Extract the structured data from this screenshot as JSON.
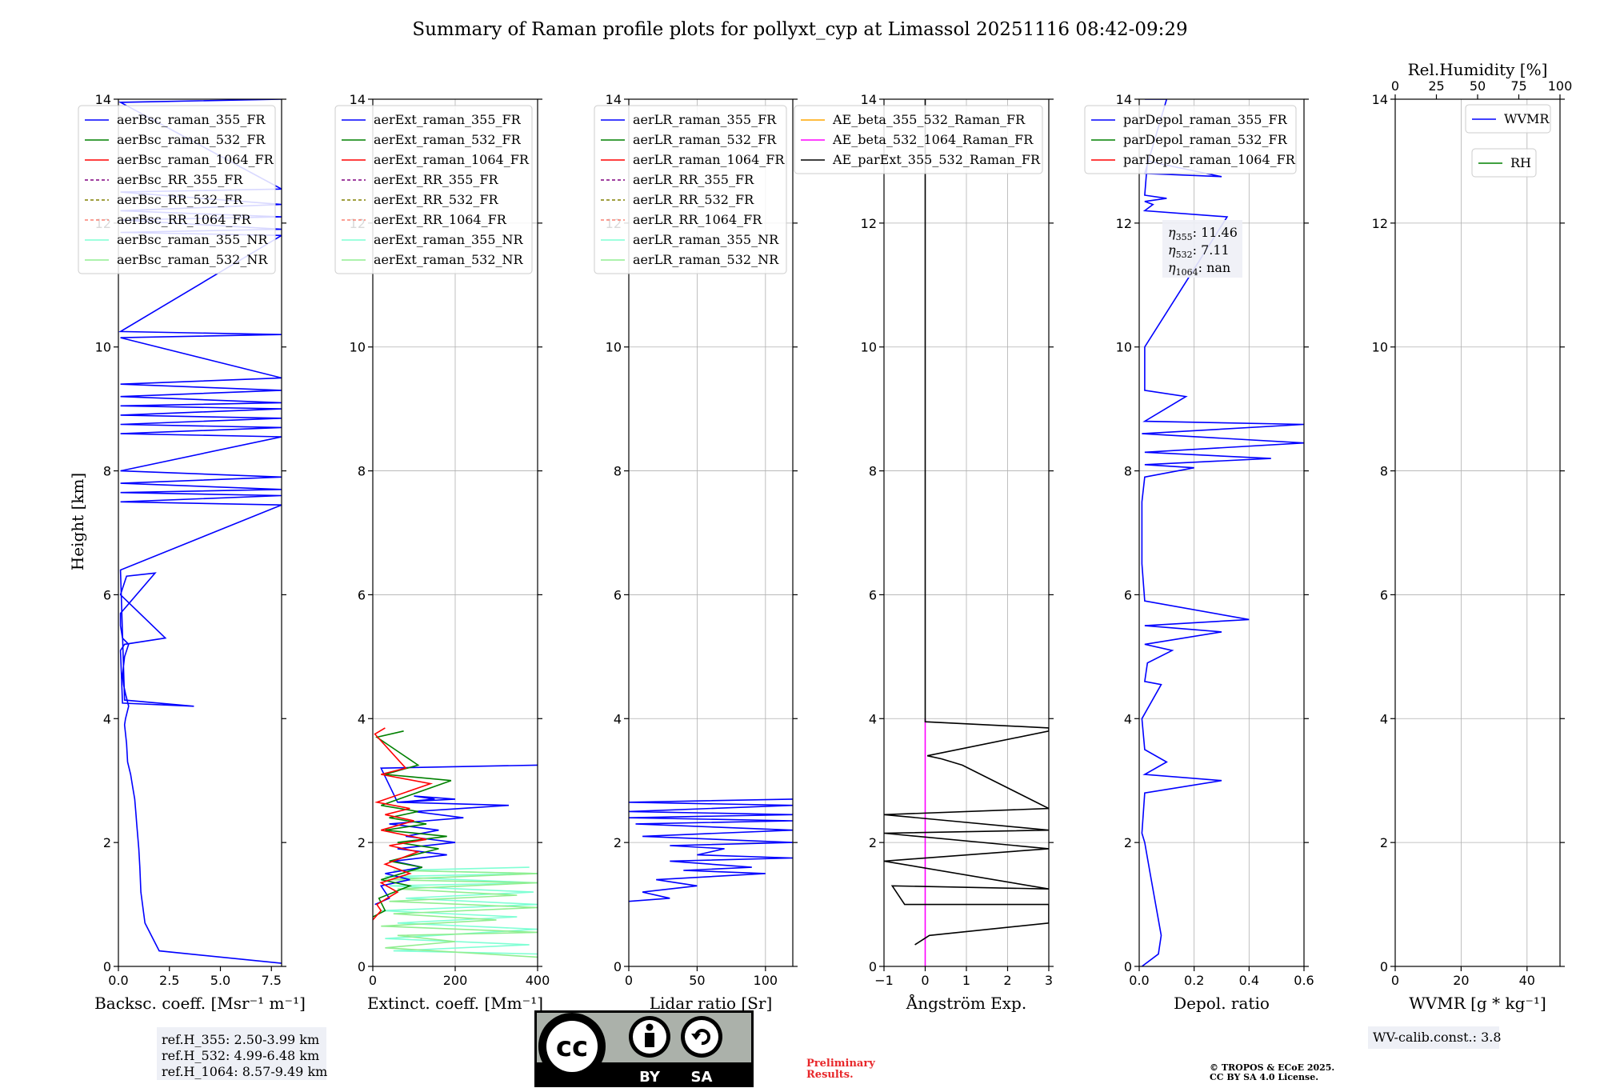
{
  "title": "Summary of Raman profile plots for pollyxt_cyp at Limassol 20251116 08:42-09:29",
  "ylabel": "Height [km]",
  "y_ticks": [
    0,
    2,
    4,
    6,
    8,
    10,
    12,
    14
  ],
  "ylim": [
    0,
    14
  ],
  "colors": {
    "blue": "#0000ff",
    "green": "#008000",
    "red": "#ff0000",
    "purple": "#800080",
    "olive": "#808000",
    "salmon": "#fa8072",
    "aquamarine": "#7fffd4",
    "lightgreen": "#90ee90",
    "orange": "#ffa500",
    "magenta": "#ff00ff",
    "black": "#000000"
  },
  "notes": {
    "eta355": "11.46",
    "eta532": "7.11",
    "eta1064": "nan",
    "ref_h_355": "ref.H_355: 2.50-3.99 km",
    "ref_h_532": "ref.H_532: 4.99-6.48 km",
    "ref_h_1064": "ref.H_1064: 8.57-9.49 km",
    "wv_calib": "WV-calib.const.: 3.8",
    "prelim_line1": "Preliminary",
    "prelim_line2": "Results.",
    "copyright_line1": "© TROPOS & ECoE 2025.",
    "copyright_line2": "CC BY SA 4.0 License.",
    "license_by": "BY",
    "license_sa": "SA",
    "license_cc": "cc"
  },
  "chart_data": [
    {
      "type": "line",
      "id": "bsc",
      "xlabel": "Backsc. coeff. [Msr⁻¹ m⁻¹]",
      "xlim": [
        0,
        8
      ],
      "x_ticks": [
        0,
        2.5,
        5,
        7.5
      ],
      "x_tick_labels": [
        "0.0",
        "2.5",
        "5.0",
        "7.5"
      ],
      "grid": false,
      "legend": [
        {
          "label": "aerBsc_raman_355_FR",
          "color": "blue",
          "dash": false
        },
        {
          "label": "aerBsc_raman_532_FR",
          "color": "green",
          "dash": false
        },
        {
          "label": "aerBsc_raman_1064_FR",
          "color": "red",
          "dash": false
        },
        {
          "label": "aerBsc_RR_355_FR",
          "color": "purple",
          "dash": true
        },
        {
          "label": "aerBsc_RR_532_FR",
          "color": "olive",
          "dash": true
        },
        {
          "label": "aerBsc_RR_1064_FR",
          "color": "salmon",
          "dash": true
        },
        {
          "label": "aerBsc_raman_355_NR",
          "color": "aquamarine",
          "dash": false
        },
        {
          "label": "aerBsc_raman_532_NR",
          "color": "lightgreen",
          "dash": false
        }
      ],
      "series": [
        {
          "name": "aerBsc_raman_355_FR",
          "color": "blue",
          "x": [
            8,
            2,
            1.3,
            1.1,
            1.05,
            1.0,
            0.95,
            0.9,
            0.85,
            0.8,
            0.7,
            0.6,
            0.45,
            0.4,
            0.3,
            0.35,
            0.5,
            0.35,
            0.25,
            0.2,
            0.3,
            0.5,
            0.2,
            0.1,
            0.1,
            1.8,
            0.4,
            0.2,
            0.1,
            2.3,
            0.3,
            0.1,
            0.2,
            3.7,
            0.3,
            0.1,
            8,
            0.1,
            8,
            0.1,
            8,
            0.1,
            8,
            0.1,
            8,
            0.1,
            8,
            0.1,
            8,
            0.1,
            8,
            0.1,
            8,
            0.1,
            8,
            0.1,
            8,
            0.1,
            8,
            0.1,
            8,
            0.1,
            8,
            0.1,
            8,
            0.1,
            8,
            0.1,
            8,
            0.1,
            8
          ],
          "y": [
            0.05,
            0.25,
            0.7,
            1.2,
            1.6,
            1.9,
            2.1,
            2.3,
            2.5,
            2.7,
            2.9,
            3.1,
            3.3,
            3.6,
            3.9,
            4.0,
            4.2,
            4.4,
            4.55,
            4.7,
            5.0,
            5.2,
            5.3,
            5.5,
            5.7,
            6.35,
            6.3,
            6.1,
            6.0,
            5.3,
            5.2,
            5.1,
            4.25,
            4.2,
            4.3,
            6.4,
            7.45,
            7.5,
            7.6,
            7.65,
            7.7,
            7.8,
            7.9,
            8.0,
            8.55,
            8.6,
            8.7,
            8.75,
            8.85,
            8.9,
            9.0,
            9.05,
            9.1,
            9.2,
            9.3,
            9.4,
            9.5,
            10.15,
            10.2,
            10.25,
            11.8,
            11.85,
            11.9,
            12.05,
            12.1,
            12.2,
            12.3,
            12.5,
            12.55,
            13.95,
            14.0
          ]
        }
      ]
    },
    {
      "type": "line",
      "id": "ext",
      "xlabel": "Extinct. coeff. [Mm⁻¹]",
      "xlim": [
        0,
        400
      ],
      "x_ticks": [
        0,
        200,
        400
      ],
      "x_tick_labels": [
        "0",
        "200",
        "400"
      ],
      "grid": true,
      "legend": [
        {
          "label": "aerExt_raman_355_FR",
          "color": "blue",
          "dash": false
        },
        {
          "label": "aerExt_raman_532_FR",
          "color": "green",
          "dash": false
        },
        {
          "label": "aerExt_raman_1064_FR",
          "color": "red",
          "dash": false
        },
        {
          "label": "aerExt_RR_355_FR",
          "color": "purple",
          "dash": true
        },
        {
          "label": "aerExt_RR_532_FR",
          "color": "olive",
          "dash": true
        },
        {
          "label": "aerExt_RR_1064_FR",
          "color": "salmon",
          "dash": true
        },
        {
          "label": "aerExt_raman_355_NR",
          "color": "aquamarine",
          "dash": false
        },
        {
          "label": "aerExt_raman_532_NR",
          "color": "lightgreen",
          "dash": false
        }
      ],
      "series": [
        {
          "name": "aerExt_raman_355_NR",
          "color": "aquamarine",
          "x": [
            400,
            50,
            380,
            30,
            400,
            60,
            350,
            20,
            400,
            80,
            390,
            40,
            400,
            30,
            400,
            60,
            380
          ],
          "y": [
            0.2,
            0.25,
            0.35,
            0.45,
            0.6,
            0.7,
            0.8,
            0.9,
            1.0,
            1.1,
            1.2,
            1.3,
            1.35,
            1.45,
            1.5,
            1.55,
            1.6
          ]
        },
        {
          "name": "aerExt_raman_532_NR",
          "color": "lightgreen",
          "x": [
            400,
            30,
            200,
            60,
            400,
            20,
            300,
            50,
            400,
            40,
            350,
            60,
            400,
            30,
            400,
            50
          ],
          "y": [
            0.15,
            0.3,
            0.4,
            0.5,
            0.55,
            0.65,
            0.75,
            0.85,
            0.95,
            1.05,
            1.15,
            1.25,
            1.35,
            1.4,
            1.5,
            1.55
          ]
        },
        {
          "name": "aerExt_raman_355_FR",
          "color": "blue",
          "x": [
            5,
            40,
            20,
            90,
            30,
            120,
            50,
            180,
            60,
            200,
            80,
            160,
            40,
            220,
            100,
            330,
            60,
            200,
            100,
            150,
            60,
            20,
            400
          ],
          "y": [
            1.0,
            1.1,
            1.3,
            1.4,
            1.5,
            1.6,
            1.7,
            1.8,
            1.9,
            2.0,
            2.1,
            2.2,
            2.3,
            2.4,
            2.5,
            2.6,
            2.65,
            2.7,
            2.75,
            2.7,
            2.65,
            3.2,
            3.25
          ]
        },
        {
          "name": "aerExt_raman_532_FR",
          "color": "green",
          "x": [
            0,
            30,
            15,
            90,
            20,
            120,
            40,
            160,
            60,
            180,
            30,
            130,
            40,
            110,
            20,
            190,
            30,
            110,
            10,
            75
          ],
          "y": [
            0.8,
            0.9,
            1.1,
            1.3,
            1.4,
            1.6,
            1.7,
            1.9,
            2.0,
            2.1,
            2.2,
            2.3,
            2.4,
            2.5,
            2.6,
            3.0,
            3.1,
            3.25,
            3.7,
            3.8
          ]
        },
        {
          "name": "aerExt_raman_1064_FR",
          "color": "red",
          "x": [
            0,
            20,
            10,
            60,
            20,
            90,
            30,
            110,
            40,
            130,
            20,
            100,
            30,
            90,
            10,
            140,
            20,
            80,
            5,
            30
          ],
          "y": [
            0.75,
            0.9,
            1.0,
            1.2,
            1.35,
            1.5,
            1.65,
            1.85,
            1.95,
            2.05,
            2.2,
            2.35,
            2.45,
            2.55,
            2.65,
            2.95,
            3.1,
            3.2,
            3.75,
            3.85
          ]
        }
      ]
    },
    {
      "type": "line",
      "id": "lr",
      "xlabel": "Lidar ratio [Sr]",
      "xlim": [
        0,
        120
      ],
      "x_ticks": [
        0,
        50,
        100
      ],
      "x_tick_labels": [
        "0",
        "50",
        "100"
      ],
      "grid": true,
      "legend": [
        {
          "label": "aerLR_raman_355_FR",
          "color": "blue",
          "dash": false
        },
        {
          "label": "aerLR_raman_532_FR",
          "color": "green",
          "dash": false
        },
        {
          "label": "aerLR_raman_1064_FR",
          "color": "red",
          "dash": false
        },
        {
          "label": "aerLR_RR_355_FR",
          "color": "purple",
          "dash": true
        },
        {
          "label": "aerLR_RR_532_FR",
          "color": "olive",
          "dash": true
        },
        {
          "label": "aerLR_RR_1064_FR",
          "color": "salmon",
          "dash": true
        },
        {
          "label": "aerLR_raman_355_NR",
          "color": "aquamarine",
          "dash": false
        },
        {
          "label": "aerLR_raman_532_NR",
          "color": "lightgreen",
          "dash": false
        }
      ],
      "series": [
        {
          "name": "aerLR_raman_355_FR",
          "color": "blue",
          "x": [
            0,
            30,
            10,
            50,
            20,
            100,
            40,
            90,
            30,
            120,
            50,
            70,
            30,
            120,
            10,
            120,
            5,
            120,
            0,
            120,
            0,
            120,
            0,
            120
          ],
          "y": [
            1.05,
            1.1,
            1.2,
            1.3,
            1.4,
            1.5,
            1.55,
            1.6,
            1.7,
            1.75,
            1.8,
            1.9,
            1.95,
            2.0,
            2.1,
            2.2,
            2.3,
            2.35,
            2.4,
            2.45,
            2.5,
            2.6,
            2.65,
            2.7
          ]
        }
      ]
    },
    {
      "type": "line",
      "id": "ae",
      "xlabel": "Ångström Exp.",
      "xlim": [
        -1,
        3
      ],
      "x_ticks": [
        -1,
        0,
        1,
        2,
        3
      ],
      "x_tick_labels": [
        "−1",
        "0",
        "1",
        "2",
        "3"
      ],
      "grid": true,
      "legend": [
        {
          "label": "AE_beta_355_532_Raman_FR",
          "color": "orange",
          "dash": false
        },
        {
          "label": "AE_beta_532_1064_Raman_FR",
          "color": "magenta",
          "dash": false
        },
        {
          "label": "AE_parExt_355_532_Raman_FR",
          "color": "black",
          "dash": false
        }
      ],
      "series": [
        {
          "name": "AE_beta_532_1064_Raman_FR",
          "color": "magenta",
          "x": [
            0,
            0
          ],
          "y": [
            0,
            4.0
          ]
        },
        {
          "name": "AE_parExt_355_532_Raman_FR",
          "color": "black",
          "x": [
            -0.25,
            0.1,
            3,
            3,
            -0.5,
            -0.8,
            3,
            -1,
            3,
            -1,
            3,
            -1,
            3,
            0.9,
            0.4,
            0.05,
            3,
            3,
            0,
            0,
            0
          ],
          "y": [
            0.35,
            0.5,
            0.7,
            1.0,
            1.0,
            1.3,
            1.25,
            1.7,
            1.9,
            2.15,
            2.2,
            2.45,
            2.55,
            3.25,
            3.35,
            3.4,
            3.8,
            3.85,
            3.95,
            4.0,
            14.0
          ]
        }
      ]
    },
    {
      "type": "line",
      "id": "depol",
      "xlabel": "Depol. ratio",
      "xlim": [
        0,
        0.6
      ],
      "x_ticks": [
        0,
        0.2,
        0.4,
        0.6
      ],
      "x_tick_labels": [
        "0.0",
        "0.2",
        "0.4",
        "0.6"
      ],
      "grid": true,
      "legend": [
        {
          "label": "parDepol_raman_355_FR",
          "color": "blue",
          "dash": false
        },
        {
          "label": "parDepol_raman_532_FR",
          "color": "green",
          "dash": false
        },
        {
          "label": "parDepol_raman_1064_FR",
          "color": "red",
          "dash": false
        }
      ],
      "series": [
        {
          "name": "parDepol_raman_355_FR",
          "color": "blue",
          "x": [
            0.01,
            0.07,
            0.08,
            0.06,
            0.04,
            0.02,
            0.01,
            0.02,
            0.3,
            0.02,
            0.1,
            0.02,
            0.01,
            0.08,
            0.02,
            0.03,
            0.12,
            0.02,
            0.3,
            0.02,
            0.4,
            0.02,
            0.01,
            0.01,
            0.02,
            0.2,
            0.02,
            0.48,
            0.02,
            0.6,
            0.01,
            0.6,
            0.02,
            0.17,
            0.02,
            0.02,
            0.32,
            0.02,
            0.05,
            0.02,
            0.1,
            0.02,
            0.03,
            0.3,
            0.02,
            0.1,
            0.02
          ],
          "y": [
            0.0,
            0.2,
            0.5,
            1.0,
            1.5,
            2.0,
            2.15,
            2.8,
            3.0,
            3.1,
            3.3,
            3.5,
            4.0,
            4.55,
            4.6,
            4.9,
            5.1,
            5.2,
            5.4,
            5.5,
            5.6,
            5.9,
            6.5,
            7.5,
            7.9,
            8.05,
            8.1,
            8.2,
            8.3,
            8.45,
            8.6,
            8.75,
            8.8,
            9.2,
            9.3,
            10.0,
            12.1,
            12.2,
            12.3,
            12.35,
            12.4,
            12.45,
            13.0,
            12.75,
            12.8,
            14.0,
            14.0
          ]
        }
      ]
    },
    {
      "type": "line",
      "id": "wv",
      "xlabel": "WVMR [g * kg⁻¹]",
      "xlim": [
        0,
        50
      ],
      "x_ticks": [
        0,
        20,
        40
      ],
      "x_tick_labels": [
        "0",
        "20",
        "40"
      ],
      "top_axis_label": "Rel.Humidity [%]",
      "top_xlim": [
        0,
        100
      ],
      "top_ticks": [
        0,
        25,
        50,
        75,
        100
      ],
      "top_tick_labels": [
        "0",
        "25",
        "50",
        "75",
        "100"
      ],
      "grid": true,
      "legend": [
        {
          "label": "WVMR",
          "color": "blue",
          "dash": false
        }
      ],
      "legend2": [
        {
          "label": "RH",
          "color": "green",
          "dash": false
        }
      ],
      "series": []
    }
  ]
}
